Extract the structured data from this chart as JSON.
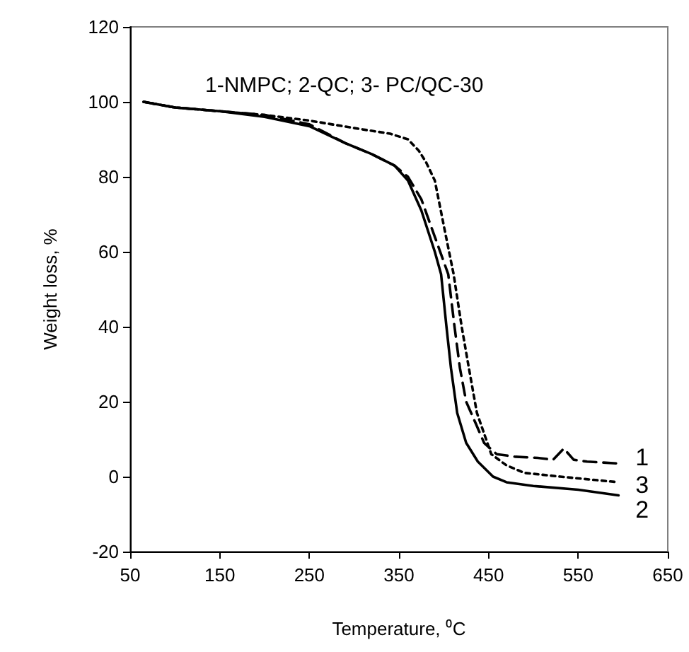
{
  "chart_data": {
    "type": "line",
    "title": "1-NMPC; 2-QC; 3- PC/QC-30",
    "xlabel": "Temperature, ⁰C",
    "ylabel": "Weight loss, %",
    "xlim": [
      50,
      650
    ],
    "xticks": [
      50,
      150,
      250,
      350,
      450,
      550,
      650
    ],
    "ylim": [
      -20,
      120
    ],
    "yticks": [
      -20,
      0,
      20,
      40,
      60,
      80,
      100,
      120
    ],
    "grid": false,
    "marker": "none",
    "series": [
      {
        "name": "1",
        "color": "#000000",
        "line_style": "dashed",
        "x": [
          65,
          100,
          150,
          200,
          250,
          290,
          320,
          345,
          360,
          375,
          390,
          405,
          412,
          418,
          425,
          436,
          445,
          459,
          480,
          505,
          522,
          534,
          545,
          560,
          595
        ],
        "values": [
          100,
          98.5,
          97.5,
          96.5,
          94,
          89,
          86,
          83,
          80,
          74,
          64,
          54,
          40,
          29,
          20,
          14,
          9,
          6,
          5.3,
          5,
          4.5,
          7.5,
          4.5,
          4,
          3.5
        ]
      },
      {
        "name": "2",
        "color": "#000000",
        "line_style": "solid",
        "x": [
          65,
          100,
          150,
          200,
          250,
          290,
          320,
          345,
          360,
          375,
          390,
          397,
          403,
          408,
          415,
          425,
          438,
          455,
          470,
          500,
          550,
          595
        ],
        "values": [
          100,
          98.5,
          97.5,
          96,
          93.5,
          89,
          86,
          83,
          79,
          71,
          60,
          54,
          40,
          29,
          17,
          9,
          4,
          0,
          -1.5,
          -2.5,
          -3.5,
          -5
        ]
      },
      {
        "name": "3",
        "color": "#000000",
        "line_style": "dotted",
        "x": [
          65,
          100,
          150,
          200,
          250,
          300,
          340,
          360,
          372,
          380,
          390,
          400,
          411,
          420,
          428,
          437,
          453,
          470,
          490,
          530,
          595
        ],
        "values": [
          100,
          98.5,
          97.5,
          96.5,
          95,
          93,
          91.5,
          90,
          87,
          84,
          79,
          67,
          54,
          40,
          29,
          17,
          6,
          3,
          1,
          0,
          -1.5
        ]
      }
    ]
  }
}
